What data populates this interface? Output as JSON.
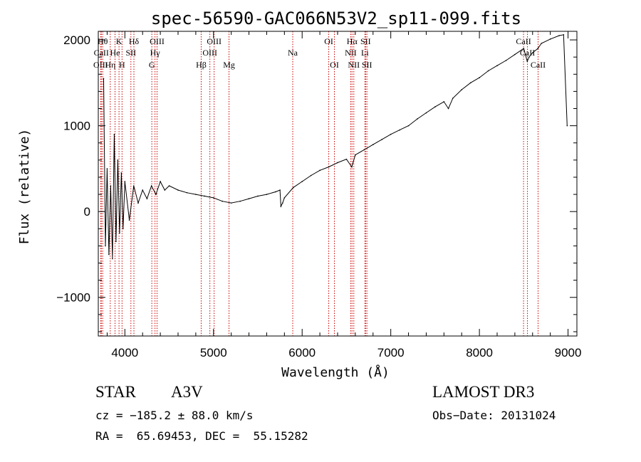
{
  "chart_data": {
    "type": "line",
    "title": "spec-56590-GAC066N53V2_sp11-099.fits",
    "xlabel": "Wavelength (Å)",
    "ylabel": "Flux (relative)",
    "xlim": [
      3700,
      9100
    ],
    "ylim": [
      -1450,
      2100
    ],
    "xticks": [
      4000,
      5000,
      6000,
      7000,
      8000,
      9000
    ],
    "xtick_labels": [
      "4000",
      "5000",
      "6000",
      "7000",
      "8000",
      "9000"
    ],
    "yticks": [
      -1000,
      0,
      1000,
      2000
    ],
    "ytick_labels": [
      "−1000",
      "0",
      "1000",
      "2000"
    ],
    "series": [
      {
        "name": "flux",
        "x": [
          3760,
          3780,
          3800,
          3820,
          3840,
          3860,
          3880,
          3900,
          3920,
          3940,
          3960,
          3980,
          4000,
          4050,
          4100,
          4150,
          4200,
          4250,
          4300,
          4350,
          4400,
          4450,
          4500,
          4600,
          4700,
          4800,
          4900,
          5000,
          5100,
          5200,
          5300,
          5400,
          5500,
          5600,
          5700,
          5750,
          5760,
          5780,
          5800,
          5900,
          6000,
          6100,
          6200,
          6300,
          6400,
          6500,
          6560,
          6600,
          6700,
          6800,
          6900,
          7000,
          7100,
          7200,
          7300,
          7400,
          7500,
          7600,
          7650,
          7700,
          7800,
          7900,
          8000,
          8100,
          8200,
          8300,
          8400,
          8500,
          8540,
          8560,
          8600,
          8660,
          8700,
          8800,
          8900,
          8950,
          8990
        ],
        "y": [
          1550,
          -400,
          500,
          -500,
          300,
          -550,
          900,
          -350,
          600,
          -250,
          450,
          -200,
          350,
          -100,
          300,
          100,
          250,
          150,
          300,
          200,
          350,
          250,
          300,
          250,
          220,
          200,
          180,
          160,
          120,
          100,
          120,
          150,
          180,
          200,
          230,
          250,
          60,
          100,
          160,
          280,
          350,
          420,
          480,
          520,
          570,
          610,
          520,
          660,
          720,
          780,
          840,
          900,
          950,
          1000,
          1080,
          1150,
          1220,
          1280,
          1200,
          1320,
          1420,
          1500,
          1560,
          1640,
          1700,
          1760,
          1830,
          1900,
          1750,
          1800,
          1850,
          1900,
          1960,
          2010,
          2050,
          2060,
          1000
        ]
      }
    ],
    "lines": [
      {
        "name": "OIII",
        "wl": 3727,
        "row": 3
      },
      {
        "name": "CaII",
        "wl": 3734,
        "row": 2
      },
      {
        "name": "Hθ",
        "wl": 3750,
        "row": 1
      },
      {
        "name": "Hη",
        "wl": 3835,
        "row": 3
      },
      {
        "name": "K",
        "wl": 3934,
        "row": 1
      },
      {
        "name": "He",
        "wl": 3889,
        "row": 2
      },
      {
        "name": "H",
        "wl": 3968,
        "row": 3
      },
      {
        "name": "SII",
        "wl": 4068,
        "row": 2
      },
      {
        "name": "Hδ",
        "wl": 4102,
        "row": 1
      },
      {
        "name": "G",
        "wl": 4304,
        "row": 3
      },
      {
        "name": "Hγ",
        "wl": 4340,
        "row": 2
      },
      {
        "name": "OIII",
        "wl": 4363,
        "row": 1
      },
      {
        "name": "Hβ",
        "wl": 4861,
        "row": 3
      },
      {
        "name": "OIII",
        "wl": 4959,
        "row": 2
      },
      {
        "name": "OIII",
        "wl": 5007,
        "row": 1
      },
      {
        "name": "Mg",
        "wl": 5175,
        "row": 3
      },
      {
        "name": "Na",
        "wl": 5894,
        "row": 2
      },
      {
        "name": "OI",
        "wl": 6300,
        "row": 1
      },
      {
        "name": "OI",
        "wl": 6364,
        "row": 3
      },
      {
        "name": "NII",
        "wl": 6548,
        "row": 2
      },
      {
        "name": "Hα",
        "wl": 6563,
        "row": 1
      },
      {
        "name": "NII",
        "wl": 6583,
        "row": 3
      },
      {
        "name": "SII",
        "wl": 6716,
        "row": 1
      },
      {
        "name": "Li",
        "wl": 6708,
        "row": 2
      },
      {
        "name": "SII",
        "wl": 6731,
        "row": 3
      },
      {
        "name": "CaII",
        "wl": 8498,
        "row": 1
      },
      {
        "name": "CaII",
        "wl": 8542,
        "row": 2
      },
      {
        "name": "CaII",
        "wl": 8662,
        "row": 3
      }
    ],
    "line_color": "#000000",
    "marker_color": "#cc0000"
  },
  "info": {
    "class_label": "STAR",
    "subclass": "A3V",
    "survey": "LAMOST DR3",
    "cz": "cz = −185.2 ± 88.0 km/s",
    "obs_date": "Obs−Date: 20131024",
    "radec": "RA =  65.69453, DEC =  55.15282"
  }
}
